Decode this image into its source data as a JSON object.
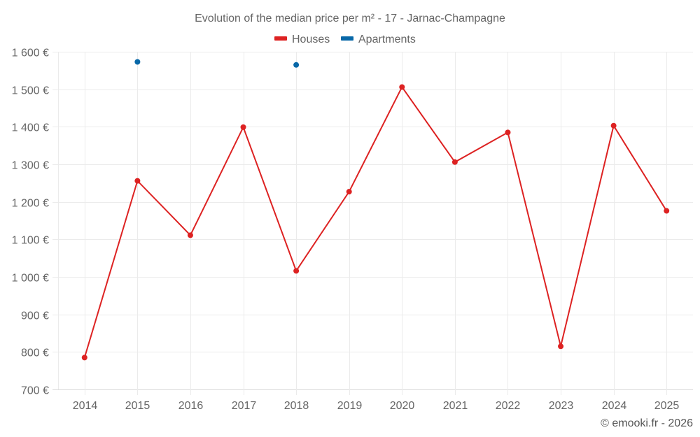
{
  "chart_data": {
    "type": "line",
    "title": "Evolution of the median price per m² - 17 - Jarnac-Champagne",
    "xlabel": "",
    "ylabel": "",
    "categories": [
      "2014",
      "2015",
      "2016",
      "2017",
      "2018",
      "2019",
      "2020",
      "2021",
      "2022",
      "2023",
      "2024",
      "2025"
    ],
    "series": [
      {
        "name": "Houses",
        "color": "#dd2222",
        "values": [
          785,
          1256,
          1111,
          1399,
          1016,
          1227,
          1506,
          1306,
          1385,
          815,
          1403,
          1176
        ]
      },
      {
        "name": "Apartments",
        "color": "#0868a8",
        "values": [
          null,
          1573,
          null,
          null,
          1565,
          null,
          null,
          null,
          null,
          null,
          null,
          null
        ]
      }
    ],
    "ylim": [
      700,
      1600
    ],
    "yticks": [
      700,
      800,
      900,
      1000,
      1100,
      1200,
      1300,
      1400,
      1500,
      1600
    ],
    "ytick_labels": [
      "700 €",
      "800 €",
      "900 €",
      "1 000 €",
      "1 100 €",
      "1 200 €",
      "1 300 €",
      "1 400 €",
      "1 500 €",
      "1 600 €"
    ],
    "grid": true,
    "legend_position": "top-center"
  },
  "credit": "© emooki.fr - 2026"
}
